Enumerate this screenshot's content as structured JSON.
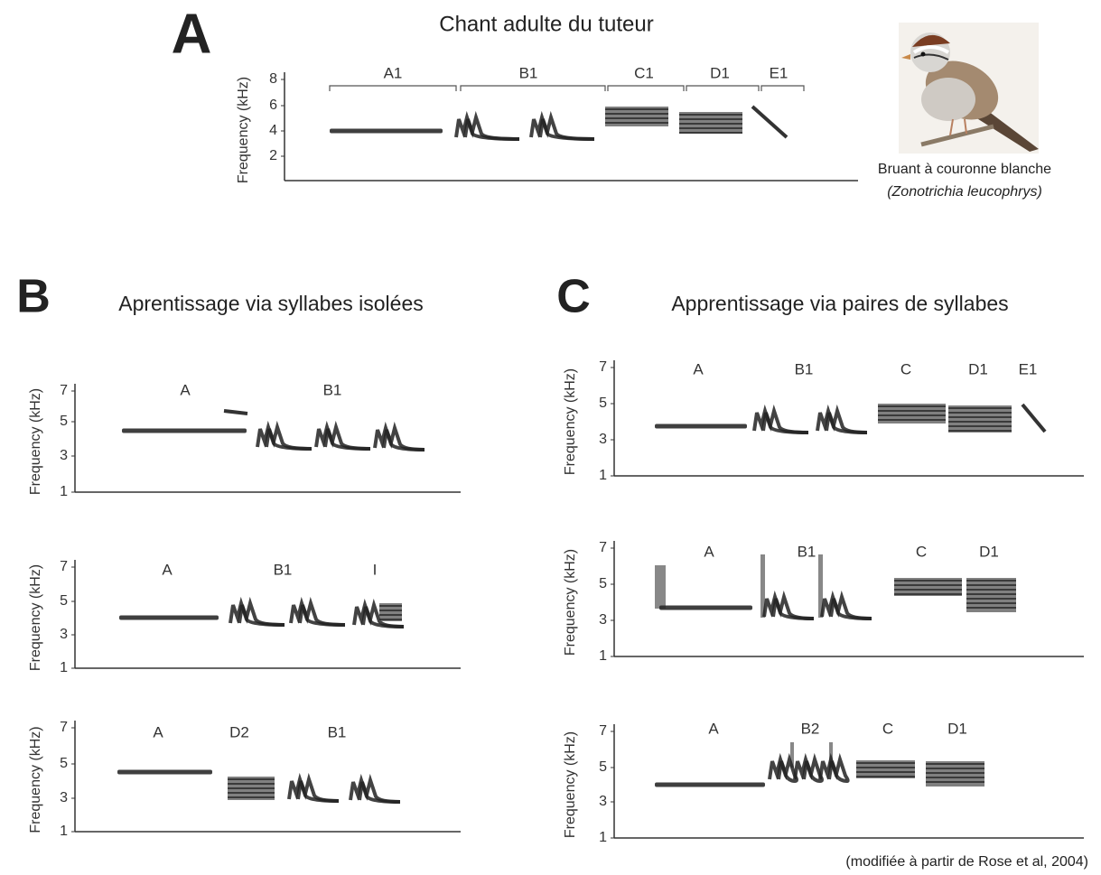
{
  "panel_a": {
    "letter": "A",
    "title": "Chant adulte du tuteur",
    "y_label": "Frequency (kHz)",
    "yticks": [
      "8",
      "6",
      "4",
      "2"
    ],
    "syllables": [
      "A1",
      "B1",
      "C1",
      "D1",
      "E1"
    ],
    "bird_name": "Bruant à couronne blanche",
    "bird_latin": "(Zonotrichia leucophrys)"
  },
  "panel_b": {
    "letter": "B",
    "title": "Aprentissage via syllabes isolées",
    "plots": [
      {
        "y_label": "Frequency (kHz)",
        "yticks": [
          "7",
          "5",
          "3",
          "1"
        ],
        "syllables": [
          "A",
          "B1"
        ]
      },
      {
        "y_label": "Frequency (kHz)",
        "yticks": [
          "7",
          "5",
          "3",
          "1"
        ],
        "syllables": [
          "A",
          "B1",
          "I"
        ]
      },
      {
        "y_label": "Frequency (kHz)",
        "yticks": [
          "7",
          "5",
          "3",
          "1"
        ],
        "syllables": [
          "A",
          "D2",
          "B1"
        ]
      }
    ]
  },
  "panel_c": {
    "letter": "C",
    "title": "Apprentissage via paires de syllabes",
    "plots": [
      {
        "y_label": "Frequency (kHz)",
        "yticks": [
          "7",
          "5",
          "3",
          "1"
        ],
        "syllables": [
          "A",
          "B1",
          "C",
          "D1",
          "E1"
        ]
      },
      {
        "y_label": "Frequency (kHz)",
        "yticks": [
          "7",
          "5",
          "3",
          "1"
        ],
        "syllables": [
          "A",
          "B1",
          "C",
          "D1"
        ]
      },
      {
        "y_label": "Frequency (kHz)",
        "yticks": [
          "7",
          "5",
          "3",
          "1"
        ],
        "syllables": [
          "A",
          "B2",
          "C",
          "D1"
        ]
      }
    ]
  },
  "credit": "(modifiée à partir de Rose et al, 2004)"
}
